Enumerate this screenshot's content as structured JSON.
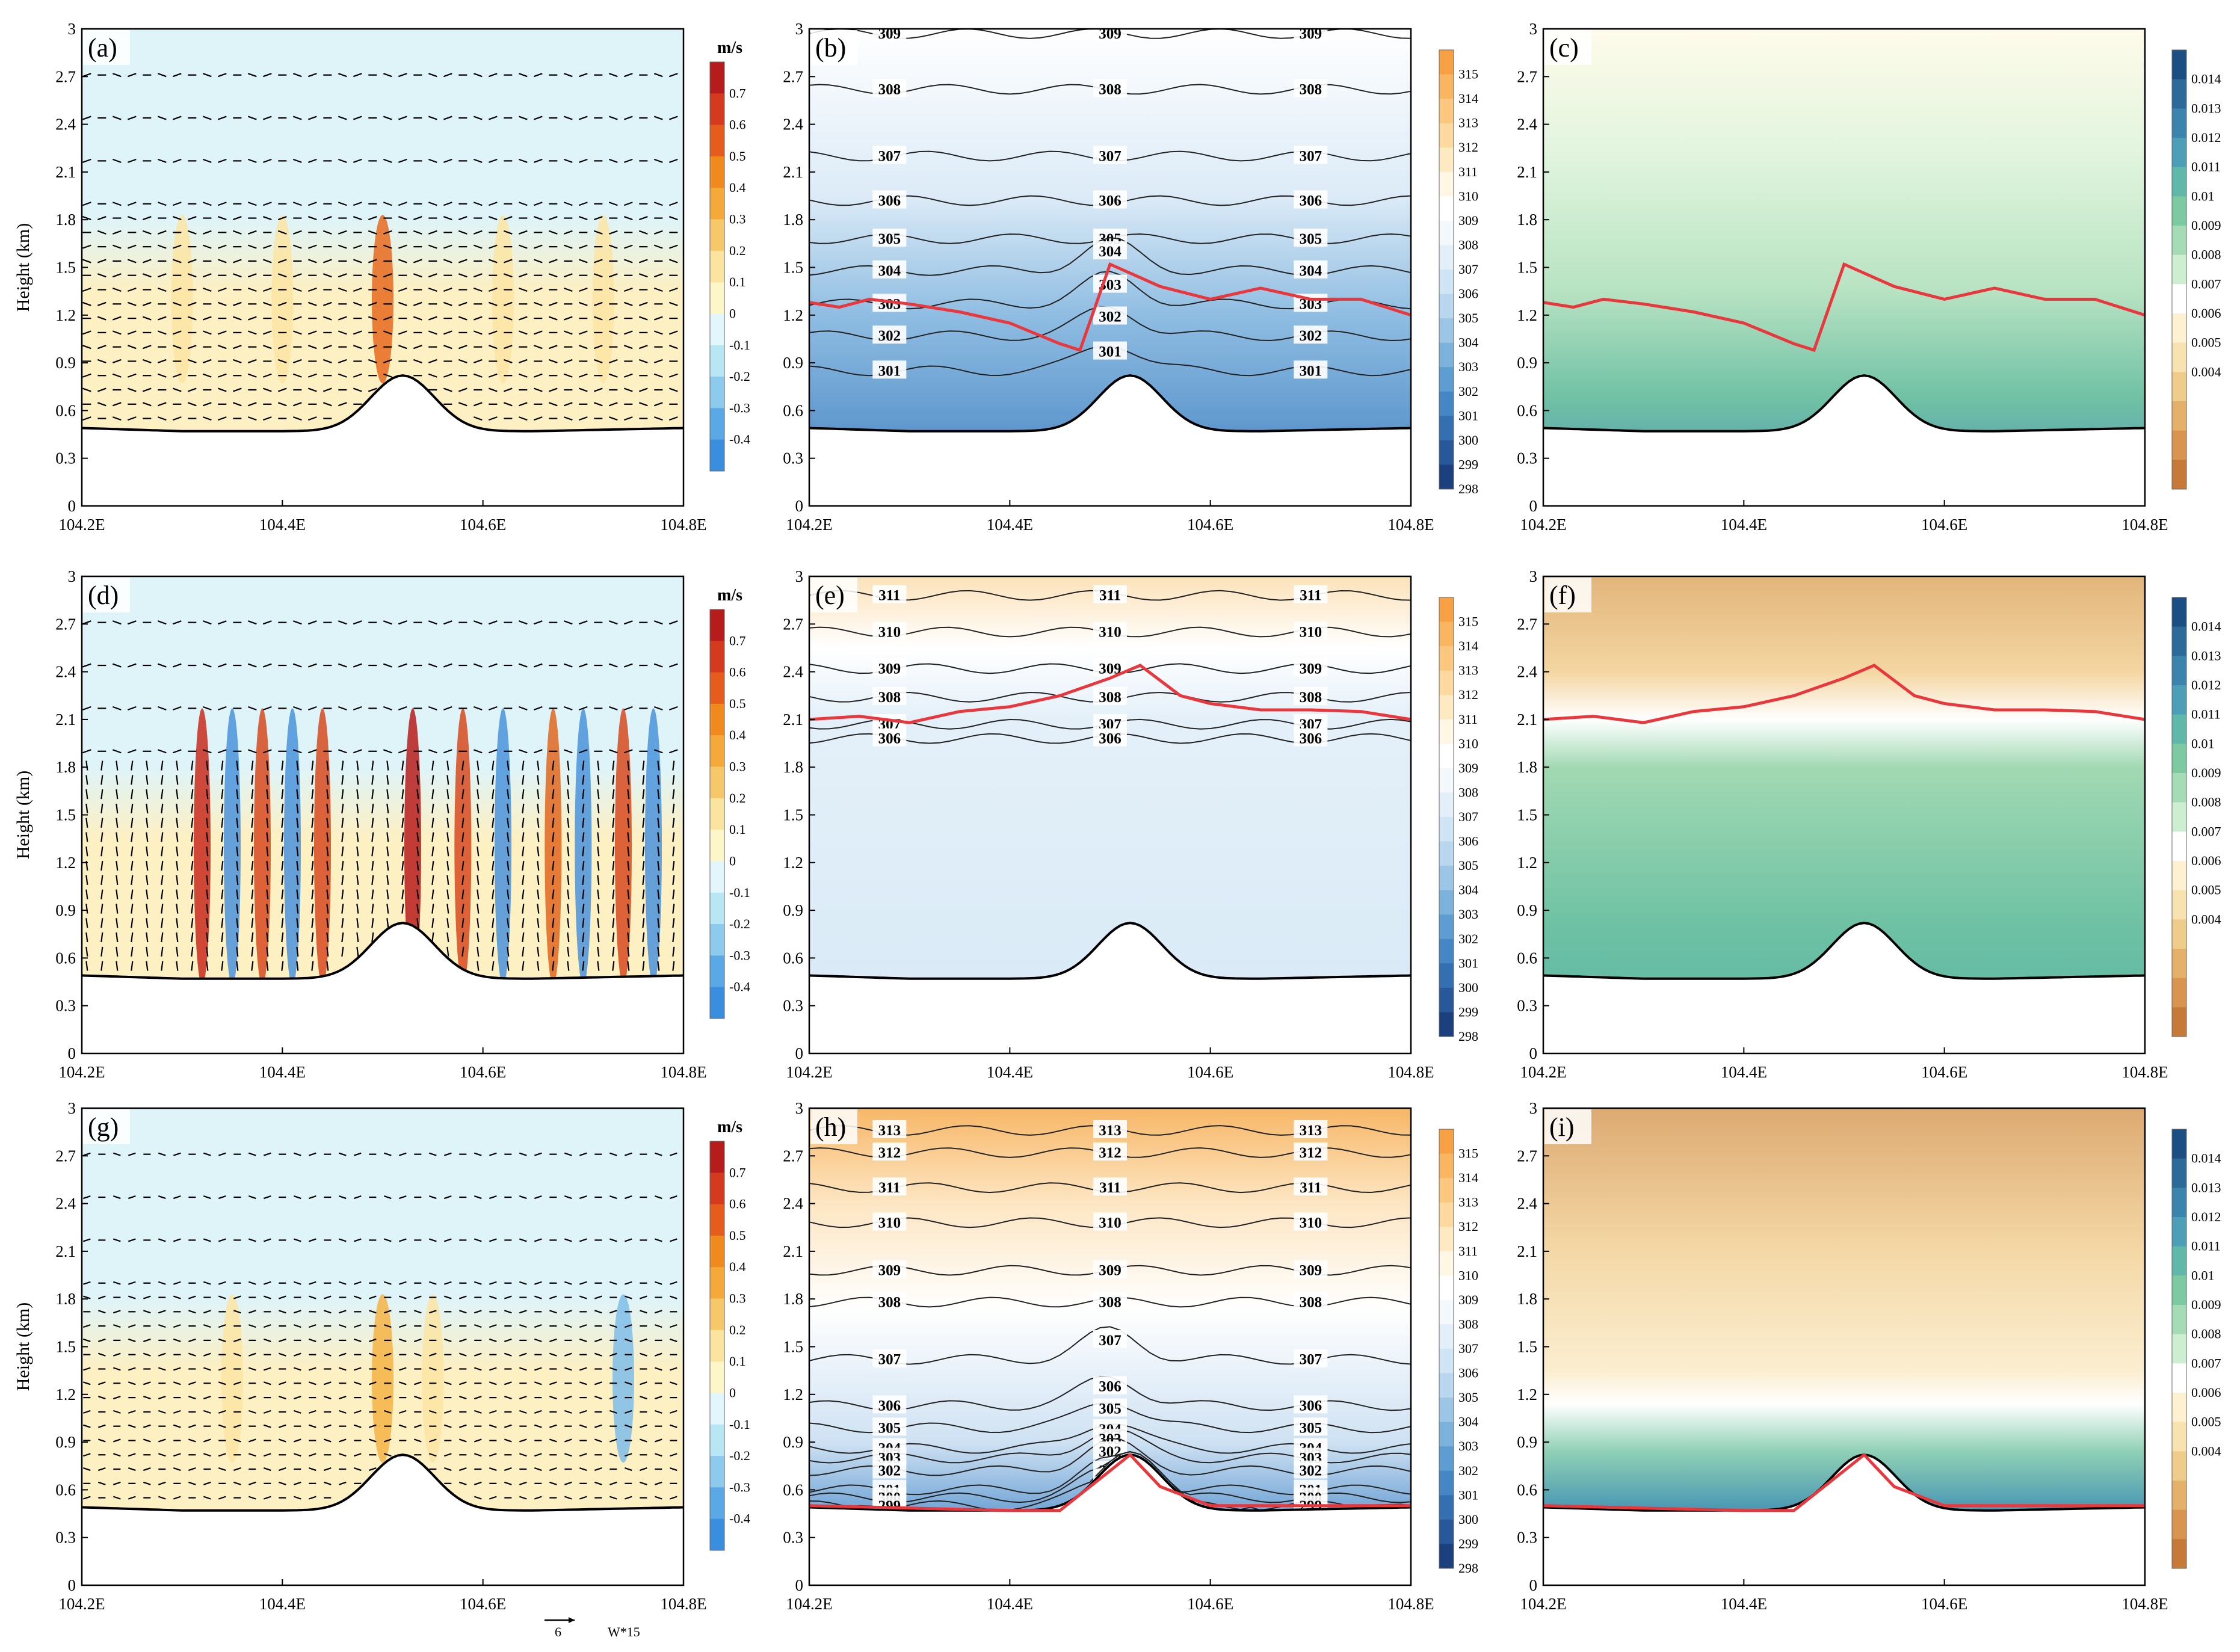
{
  "figure": {
    "ylabel": "Height (km)",
    "wind_unit": "m/s",
    "ref_vector_value": "6",
    "ref_vector_caption": "W*15"
  },
  "chart_data": [
    {
      "id": "a",
      "type": "heatmap",
      "tag": "(a)",
      "field": "wind",
      "xlim": [
        104.2,
        104.8
      ],
      "ylim": [
        0,
        3
      ],
      "xticks": [
        "104.2E",
        "104.4E",
        "104.6E",
        "104.8E"
      ],
      "yticks": [
        "0",
        "0.3",
        "0.6",
        "0.9",
        "1.2",
        "1.5",
        "1.8",
        "2.1",
        "2.4",
        "2.7",
        "3"
      ],
      "pbl": null,
      "terrain_peak_km": 0.82,
      "terrain_base_km": 0.47,
      "contours": []
    },
    {
      "id": "b",
      "type": "heatmap",
      "tag": "(b)",
      "field": "theta",
      "xlim": [
        104.2,
        104.8
      ],
      "ylim": [
        0,
        3
      ],
      "xticks": [
        "104.2E",
        "104.4E",
        "104.6E",
        "104.8E"
      ],
      "yticks": [
        "0",
        "0.3",
        "0.6",
        "0.9",
        "1.2",
        "1.5",
        "1.8",
        "2.1",
        "2.4",
        "2.7",
        "3"
      ],
      "pbl": [
        [
          104.2,
          1.28
        ],
        [
          104.23,
          1.25
        ],
        [
          104.26,
          1.3
        ],
        [
          104.3,
          1.27
        ],
        [
          104.35,
          1.22
        ],
        [
          104.4,
          1.15
        ],
        [
          104.45,
          1.02
        ],
        [
          104.47,
          0.98
        ],
        [
          104.5,
          1.52
        ],
        [
          104.55,
          1.38
        ],
        [
          104.6,
          1.3
        ],
        [
          104.65,
          1.37
        ],
        [
          104.7,
          1.3
        ],
        [
          104.75,
          1.3
        ],
        [
          104.8,
          1.2
        ]
      ],
      "contours": [
        {
          "label": "309",
          "y": 2.97
        },
        {
          "label": "308",
          "y": 2.62
        },
        {
          "label": "307",
          "y": 2.2
        },
        {
          "label": "306",
          "y": 1.92
        },
        {
          "label": "305",
          "y": 1.68
        },
        {
          "label": "304",
          "y": 1.48
        },
        {
          "label": "303",
          "y": 1.27
        },
        {
          "label": "302",
          "y": 1.07
        },
        {
          "label": "301",
          "y": 0.85
        }
      ]
    },
    {
      "id": "c",
      "type": "heatmap",
      "tag": "(c)",
      "field": "q",
      "xlim": [
        104.2,
        104.8
      ],
      "ylim": [
        0,
        3
      ],
      "xticks": [
        "104.2E",
        "104.4E",
        "104.6E",
        "104.8E"
      ],
      "yticks": [
        "0",
        "0.3",
        "0.6",
        "0.9",
        "1.2",
        "1.5",
        "1.8",
        "2.1",
        "2.4",
        "2.7",
        "3"
      ],
      "pbl": [
        [
          104.2,
          1.28
        ],
        [
          104.23,
          1.25
        ],
        [
          104.26,
          1.3
        ],
        [
          104.3,
          1.27
        ],
        [
          104.35,
          1.22
        ],
        [
          104.4,
          1.15
        ],
        [
          104.45,
          1.02
        ],
        [
          104.47,
          0.98
        ],
        [
          104.5,
          1.52
        ],
        [
          104.55,
          1.38
        ],
        [
          104.6,
          1.3
        ],
        [
          104.65,
          1.37
        ],
        [
          104.7,
          1.3
        ],
        [
          104.75,
          1.3
        ],
        [
          104.8,
          1.2
        ]
      ],
      "contours": []
    },
    {
      "id": "d",
      "type": "heatmap",
      "tag": "(d)",
      "field": "wind",
      "xlim": [
        104.2,
        104.8
      ],
      "ylim": [
        0,
        3
      ],
      "xticks": [
        "104.2E",
        "104.4E",
        "104.6E",
        "104.8E"
      ],
      "yticks": [
        "0",
        "0.3",
        "0.6",
        "0.9",
        "1.2",
        "1.5",
        "1.8",
        "2.1",
        "2.4",
        "2.7",
        "3"
      ],
      "pbl": null,
      "contours": []
    },
    {
      "id": "e",
      "type": "heatmap",
      "tag": "(e)",
      "field": "theta",
      "xlim": [
        104.2,
        104.8
      ],
      "ylim": [
        0,
        3
      ],
      "xticks": [
        "104.2E",
        "104.4E",
        "104.6E",
        "104.8E"
      ],
      "yticks": [
        "0",
        "0.3",
        "0.6",
        "0.9",
        "1.2",
        "1.5",
        "1.8",
        "2.1",
        "2.4",
        "2.7",
        "3"
      ],
      "pbl": [
        [
          104.2,
          2.1
        ],
        [
          104.25,
          2.12
        ],
        [
          104.3,
          2.08
        ],
        [
          104.35,
          2.15
        ],
        [
          104.4,
          2.18
        ],
        [
          104.45,
          2.25
        ],
        [
          104.5,
          2.36
        ],
        [
          104.53,
          2.44
        ],
        [
          104.57,
          2.25
        ],
        [
          104.6,
          2.2
        ],
        [
          104.65,
          2.16
        ],
        [
          104.7,
          2.16
        ],
        [
          104.75,
          2.15
        ],
        [
          104.8,
          2.1
        ]
      ],
      "contours": [
        {
          "label": "311",
          "y": 2.88
        },
        {
          "label": "310",
          "y": 2.65
        },
        {
          "label": "309",
          "y": 2.42
        },
        {
          "label": "308",
          "y": 2.24
        },
        {
          "label": "307",
          "y": 2.07
        },
        {
          "label": "306",
          "y": 1.98
        }
      ]
    },
    {
      "id": "f",
      "type": "heatmap",
      "tag": "(f)",
      "field": "q",
      "xlim": [
        104.2,
        104.8
      ],
      "ylim": [
        0,
        3
      ],
      "xticks": [
        "104.2E",
        "104.4E",
        "104.6E",
        "104.8E"
      ],
      "yticks": [
        "0",
        "0.3",
        "0.6",
        "0.9",
        "1.2",
        "1.5",
        "1.8",
        "2.1",
        "2.4",
        "2.7",
        "3"
      ],
      "pbl": [
        [
          104.2,
          2.1
        ],
        [
          104.25,
          2.12
        ],
        [
          104.3,
          2.08
        ],
        [
          104.35,
          2.15
        ],
        [
          104.4,
          2.18
        ],
        [
          104.45,
          2.25
        ],
        [
          104.5,
          2.36
        ],
        [
          104.53,
          2.44
        ],
        [
          104.57,
          2.25
        ],
        [
          104.6,
          2.2
        ],
        [
          104.65,
          2.16
        ],
        [
          104.7,
          2.16
        ],
        [
          104.75,
          2.15
        ],
        [
          104.8,
          2.1
        ]
      ],
      "contours": []
    },
    {
      "id": "g",
      "type": "heatmap",
      "tag": "(g)",
      "field": "wind",
      "xlim": [
        104.2,
        104.8
      ],
      "ylim": [
        0,
        3
      ],
      "xticks": [
        "104.2E",
        "104.4E",
        "104.6E",
        "104.8E"
      ],
      "yticks": [
        "0",
        "0.3",
        "0.6",
        "0.9",
        "1.2",
        "1.5",
        "1.8",
        "2.1",
        "2.4",
        "2.7",
        "3"
      ],
      "pbl": null,
      "contours": []
    },
    {
      "id": "h",
      "type": "heatmap",
      "tag": "(h)",
      "field": "theta",
      "xlim": [
        104.2,
        104.8
      ],
      "ylim": [
        0,
        3
      ],
      "xticks": [
        "104.2E",
        "104.4E",
        "104.6E",
        "104.8E"
      ],
      "yticks": [
        "0",
        "0.3",
        "0.6",
        "0.9",
        "1.2",
        "1.5",
        "1.8",
        "2.1",
        "2.4",
        "2.7",
        "3"
      ],
      "pbl": [
        [
          104.2,
          0.5
        ],
        [
          104.4,
          0.47
        ],
        [
          104.45,
          0.47
        ],
        [
          104.5,
          0.72
        ],
        [
          104.52,
          0.82
        ],
        [
          104.55,
          0.62
        ],
        [
          104.6,
          0.5
        ],
        [
          104.8,
          0.5
        ]
      ],
      "contours": [
        {
          "label": "313",
          "y": 2.86
        },
        {
          "label": "312",
          "y": 2.72
        },
        {
          "label": "311",
          "y": 2.5
        },
        {
          "label": "310",
          "y": 2.28
        },
        {
          "label": "309",
          "y": 1.98
        },
        {
          "label": "308",
          "y": 1.78
        },
        {
          "label": "307",
          "y": 1.42
        },
        {
          "label": "306",
          "y": 1.13
        },
        {
          "label": "305",
          "y": 0.99
        },
        {
          "label": "304",
          "y": 0.86
        },
        {
          "label": "303",
          "y": 0.8
        },
        {
          "label": "302",
          "y": 0.72
        },
        {
          "label": "301",
          "y": 0.6
        },
        {
          "label": "300",
          "y": 0.55
        },
        {
          "label": "299",
          "y": 0.5
        }
      ]
    },
    {
      "id": "i",
      "type": "heatmap",
      "tag": "(i)",
      "field": "q",
      "xlim": [
        104.2,
        104.8
      ],
      "ylim": [
        0,
        3
      ],
      "xticks": [
        "104.2E",
        "104.4E",
        "104.6E",
        "104.8E"
      ],
      "yticks": [
        "0",
        "0.3",
        "0.6",
        "0.9",
        "1.2",
        "1.5",
        "1.8",
        "2.1",
        "2.4",
        "2.7",
        "3"
      ],
      "pbl": [
        [
          104.2,
          0.5
        ],
        [
          104.4,
          0.47
        ],
        [
          104.45,
          0.47
        ],
        [
          104.5,
          0.72
        ],
        [
          104.52,
          0.82
        ],
        [
          104.55,
          0.62
        ],
        [
          104.6,
          0.5
        ],
        [
          104.8,
          0.5
        ]
      ],
      "contours": []
    }
  ],
  "colorbars": {
    "wind": {
      "unit": "m/s",
      "labels": [
        "0.7",
        "0.6",
        "0.5",
        "0.4",
        "0.3",
        "0.2",
        "0.1",
        "0",
        "-0.1",
        "-0.2",
        "-0.3",
        "-0.4"
      ],
      "colors": [
        "#b71c1c",
        "#d63a1e",
        "#e65c1d",
        "#f08a1e",
        "#f5a93b",
        "#f7c86a",
        "#fae49f",
        "#fdf6c8",
        "#e3f6fb",
        "#b9e6f5",
        "#8ccaee",
        "#5ba8e6",
        "#3a8ee0"
      ]
    },
    "theta": {
      "labels": [
        "315",
        "314",
        "313",
        "312",
        "311",
        "310",
        "309",
        "308",
        "307",
        "306",
        "305",
        "304",
        "303",
        "302",
        "301",
        "300",
        "299",
        "298"
      ],
      "colors": [
        "#f7a144",
        "#f9b560",
        "#fbc67e",
        "#fdd89f",
        "#feeac2",
        "#fff7e4",
        "#ffffff",
        "#f3f8fd",
        "#e2eff9",
        "#cfe4f4",
        "#b8d6ee",
        "#9dc6e6",
        "#7db2dd",
        "#5e9dd2",
        "#4587c4",
        "#336fb1",
        "#28579a",
        "#1c3f7d"
      ]
    },
    "q": {
      "labels": [
        "0.014",
        "0.013",
        "0.012",
        "0.011",
        "0.01",
        "0.009",
        "0.008",
        "0.007",
        "0.006",
        "0.005",
        "0.004"
      ],
      "colors": [
        "#1b4f83",
        "#2c6a99",
        "#3a84ad",
        "#4d9fb7",
        "#5fb8a9",
        "#7dcaa2",
        "#a5dcb5",
        "#cdeed0",
        "#ffffff",
        "#fdf1d2",
        "#f8e3b0",
        "#f0cc8a",
        "#e5b06a",
        "#d9954f",
        "#c77a38"
      ]
    }
  }
}
